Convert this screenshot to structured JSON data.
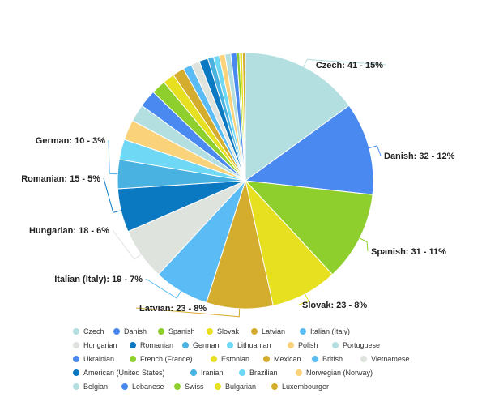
{
  "chart_data": {
    "type": "pie",
    "title": "",
    "legend_position": "bottom",
    "slices": [
      {
        "name": "Czech",
        "value": 41,
        "percent": "15%",
        "color": "#b3dfe0",
        "label": "Czech: 41 - 15%"
      },
      {
        "name": "Danish",
        "value": 32,
        "percent": "12%",
        "color": "#4a8af0",
        "label": "Danish: 32 - 12%"
      },
      {
        "name": "Spanish",
        "value": 31,
        "percent": "11%",
        "color": "#8ecf2e",
        "label": "Spanish: 31 - 11%"
      },
      {
        "name": "Slovak",
        "value": 23,
        "percent": "8%",
        "color": "#e6e021",
        "label": "Slovak: 23 - 8%"
      },
      {
        "name": "Latvian",
        "value": 23,
        "percent": "8%",
        "color": "#d4ac2e",
        "label": "Latvian: 23 - 8%"
      },
      {
        "name": "Italian (Italy)",
        "value": 19,
        "percent": "7%",
        "color": "#5bbcf5",
        "label": "Italian (Italy): 19 - 7%"
      },
      {
        "name": "Hungarian",
        "value": 18,
        "percent": "6%",
        "color": "#dfe3de",
        "label": "Hungarian: 18 - 6%"
      },
      {
        "name": "Romanian",
        "value": 15,
        "percent": "5%",
        "color": "#0b78c2",
        "label": "Romanian: 15 - 5%"
      },
      {
        "name": "German",
        "value": 10,
        "percent": "3%",
        "color": "#4ab2e0",
        "label": "German: 10 - 3%"
      },
      {
        "name": "Lithuanian",
        "value": 7,
        "color": "#6fd8f5"
      },
      {
        "name": "Polish",
        "value": 7,
        "color": "#fad27a"
      },
      {
        "name": "Portuguese",
        "value": 6,
        "color": "#b3dfe0"
      },
      {
        "name": "Ukrainian",
        "value": 6,
        "color": "#4a8af0"
      },
      {
        "name": "French (France)",
        "value": 5,
        "color": "#8ecf2e"
      },
      {
        "name": "Estonian",
        "value": 4,
        "color": "#e6e021"
      },
      {
        "name": "Mexican",
        "value": 4,
        "color": "#d4ac2e"
      },
      {
        "name": "British",
        "value": 3,
        "color": "#5bbcf5"
      },
      {
        "name": "Vietnamese",
        "value": 3,
        "color": "#dfe3de"
      },
      {
        "name": "American (United States)",
        "value": 3,
        "color": "#0b78c2"
      },
      {
        "name": "Iranian",
        "value": 2,
        "color": "#4ab2e0"
      },
      {
        "name": "Brazilian",
        "value": 2,
        "color": "#6fd8f5"
      },
      {
        "name": "Norwegian (Norway)",
        "value": 2,
        "color": "#fad27a"
      },
      {
        "name": "Belgian",
        "value": 2,
        "color": "#b3dfe0"
      },
      {
        "name": "Lebanese",
        "value": 2,
        "color": "#4a8af0"
      },
      {
        "name": "Swiss",
        "value": 1,
        "color": "#8ecf2e"
      },
      {
        "name": "Bulgarian",
        "value": 1,
        "color": "#e6e021"
      },
      {
        "name": "Luxembourger",
        "value": 1,
        "color": "#d4ac2e"
      }
    ]
  }
}
